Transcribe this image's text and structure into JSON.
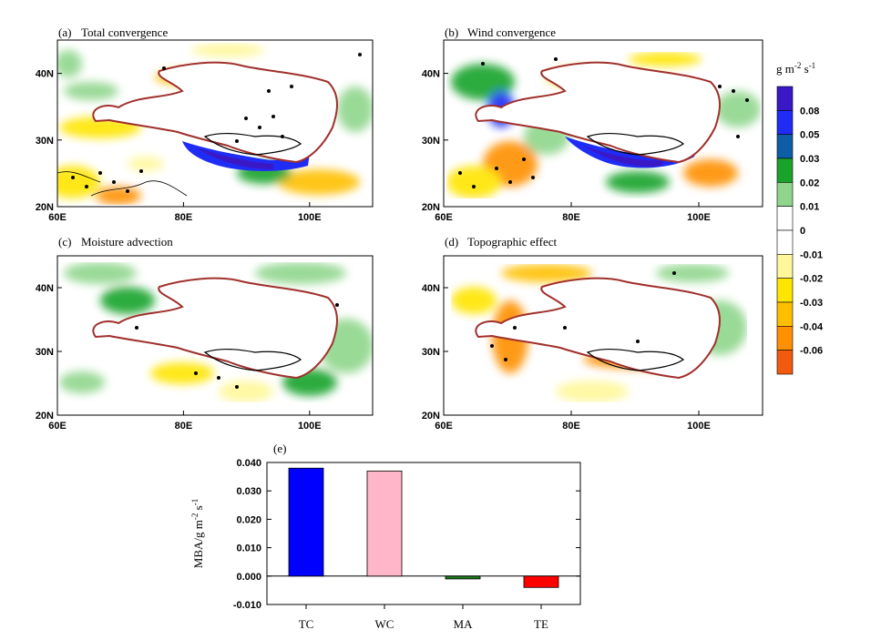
{
  "figure": {
    "panels": [
      {
        "id": "a",
        "label": "(a)",
        "title": "Total convergence"
      },
      {
        "id": "b",
        "label": "(b)",
        "title": "Wind convergence"
      },
      {
        "id": "c",
        "label": "(c)",
        "title": "Moisture advection"
      },
      {
        "id": "d",
        "label": "(d)",
        "title": "Topographic effect"
      }
    ],
    "map_x_ticks": [
      "60E",
      "80E",
      "100E"
    ],
    "map_y_ticks": [
      "40N",
      "30N",
      "20N"
    ],
    "colorbar": {
      "units_main": "g m",
      "units_exp1": "-2",
      "units_mid": " s",
      "units_exp2": "-1",
      "labels": [
        "0.08",
        "0.05",
        "0.03",
        "0.02",
        "0.01",
        "0",
        "-0.01",
        "-0.02",
        "-0.03",
        "-0.04",
        "-0.06"
      ],
      "colors": [
        "#3a18c6",
        "#1f2cf5",
        "#0d5ea6",
        "#19a32b",
        "#8fd68c",
        "#ffffff",
        "#ffffff",
        "#fff799",
        "#ffe500",
        "#ffbf00",
        "#ff9000",
        "#f25a10"
      ]
    }
  },
  "chart_data": {
    "type": "bar",
    "panel_label": "(e)",
    "categories": [
      "TC",
      "WC",
      "MA",
      "TE"
    ],
    "values": [
      0.038,
      0.037,
      -0.001,
      -0.004
    ],
    "colors": [
      "#0000ff",
      "#ffb6c8",
      "#1e7a1e",
      "#ff0000"
    ],
    "ylabel_main": "MBA/g m",
    "ylabel_exp1": "-2",
    "ylabel_mid": " s",
    "ylabel_exp2": "-1",
    "ylim": [
      -0.01,
      0.04
    ],
    "yticks": [
      "0.040",
      "0.030",
      "0.020",
      "0.010",
      "0.000",
      "-0.010"
    ]
  }
}
